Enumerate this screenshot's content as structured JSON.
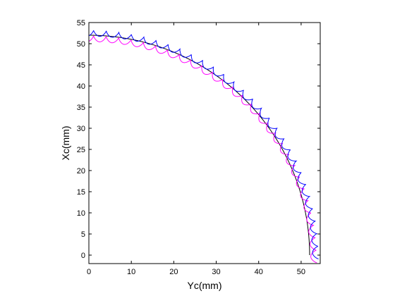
{
  "chart_data": {
    "type": "line",
    "title": "",
    "xlabel": "Yc(mm)",
    "ylabel": "Xc(mm)",
    "xlim": [
      0,
      54.5
    ],
    "ylim": [
      -2,
      55
    ],
    "xticks": [
      0,
      10,
      20,
      30,
      40,
      50
    ],
    "yticks": [
      0,
      5,
      10,
      15,
      20,
      25,
      30,
      35,
      40,
      45,
      50,
      55
    ],
    "grid": false,
    "legend": "none",
    "series": [
      {
        "kind": "arc",
        "color": "#000000",
        "radius": 52,
        "y_offset": 0,
        "theta_start_deg": 0,
        "theta_end_deg": 91.5
      },
      {
        "kind": "scalloped-arc",
        "color": "#ff00ff",
        "base_radius": 53.7,
        "amplitude": 1.4,
        "scallops": 29,
        "y_offset": -1.8,
        "theta_start_deg": 0,
        "theta_end_deg": 92
      },
      {
        "kind": "scalloped-arc",
        "color": "#0000ff",
        "base_radius": 54.1,
        "amplitude": 1.4,
        "scallops": 29,
        "y_offset": -0.9,
        "theta_start_deg": 0,
        "theta_end_deg": 92
      }
    ]
  }
}
